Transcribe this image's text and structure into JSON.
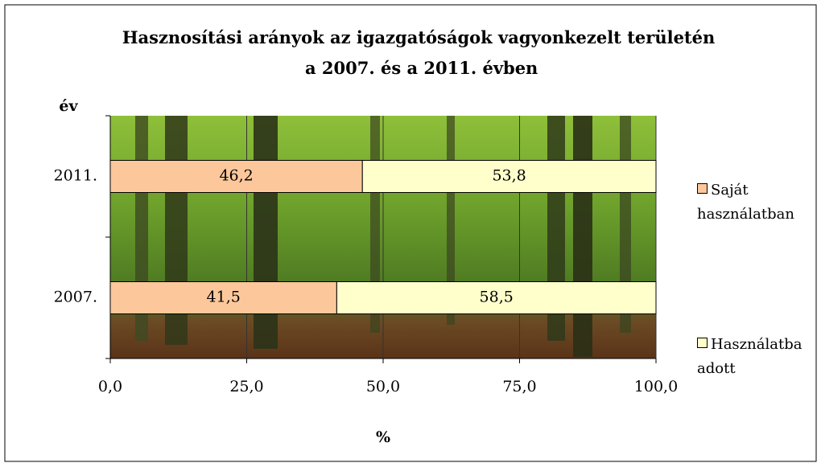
{
  "chart_data": {
    "type": "stacked-barh",
    "title": "Hasznosítási arányok az igazgatóságok vagyonkezelt területén  a 2007. és a 2011. évben",
    "y_label": "év",
    "x_label": "%",
    "categories": [
      "2011.",
      "2007."
    ],
    "series": [
      {
        "name": "Saját használatban",
        "color": "#fcc89b",
        "values": [
          46.2,
          41.5
        ],
        "value_labels": [
          "46,2",
          "41,5"
        ]
      },
      {
        "name": "Használatba adott",
        "color": "#ffffcc",
        "values": [
          53.8,
          58.5
        ],
        "value_labels": [
          "53,8",
          "58,5"
        ]
      }
    ],
    "xlim": [
      0,
      100
    ],
    "xticks": [
      {
        "value": 0,
        "label": "0,0"
      },
      {
        "value": 25,
        "label": "25,0"
      },
      {
        "value": 50,
        "label": "50,0"
      },
      {
        "value": 75,
        "label": "75,0"
      },
      {
        "value": 100,
        "label": "100,0"
      }
    ],
    "grid": true,
    "legend": "right"
  }
}
